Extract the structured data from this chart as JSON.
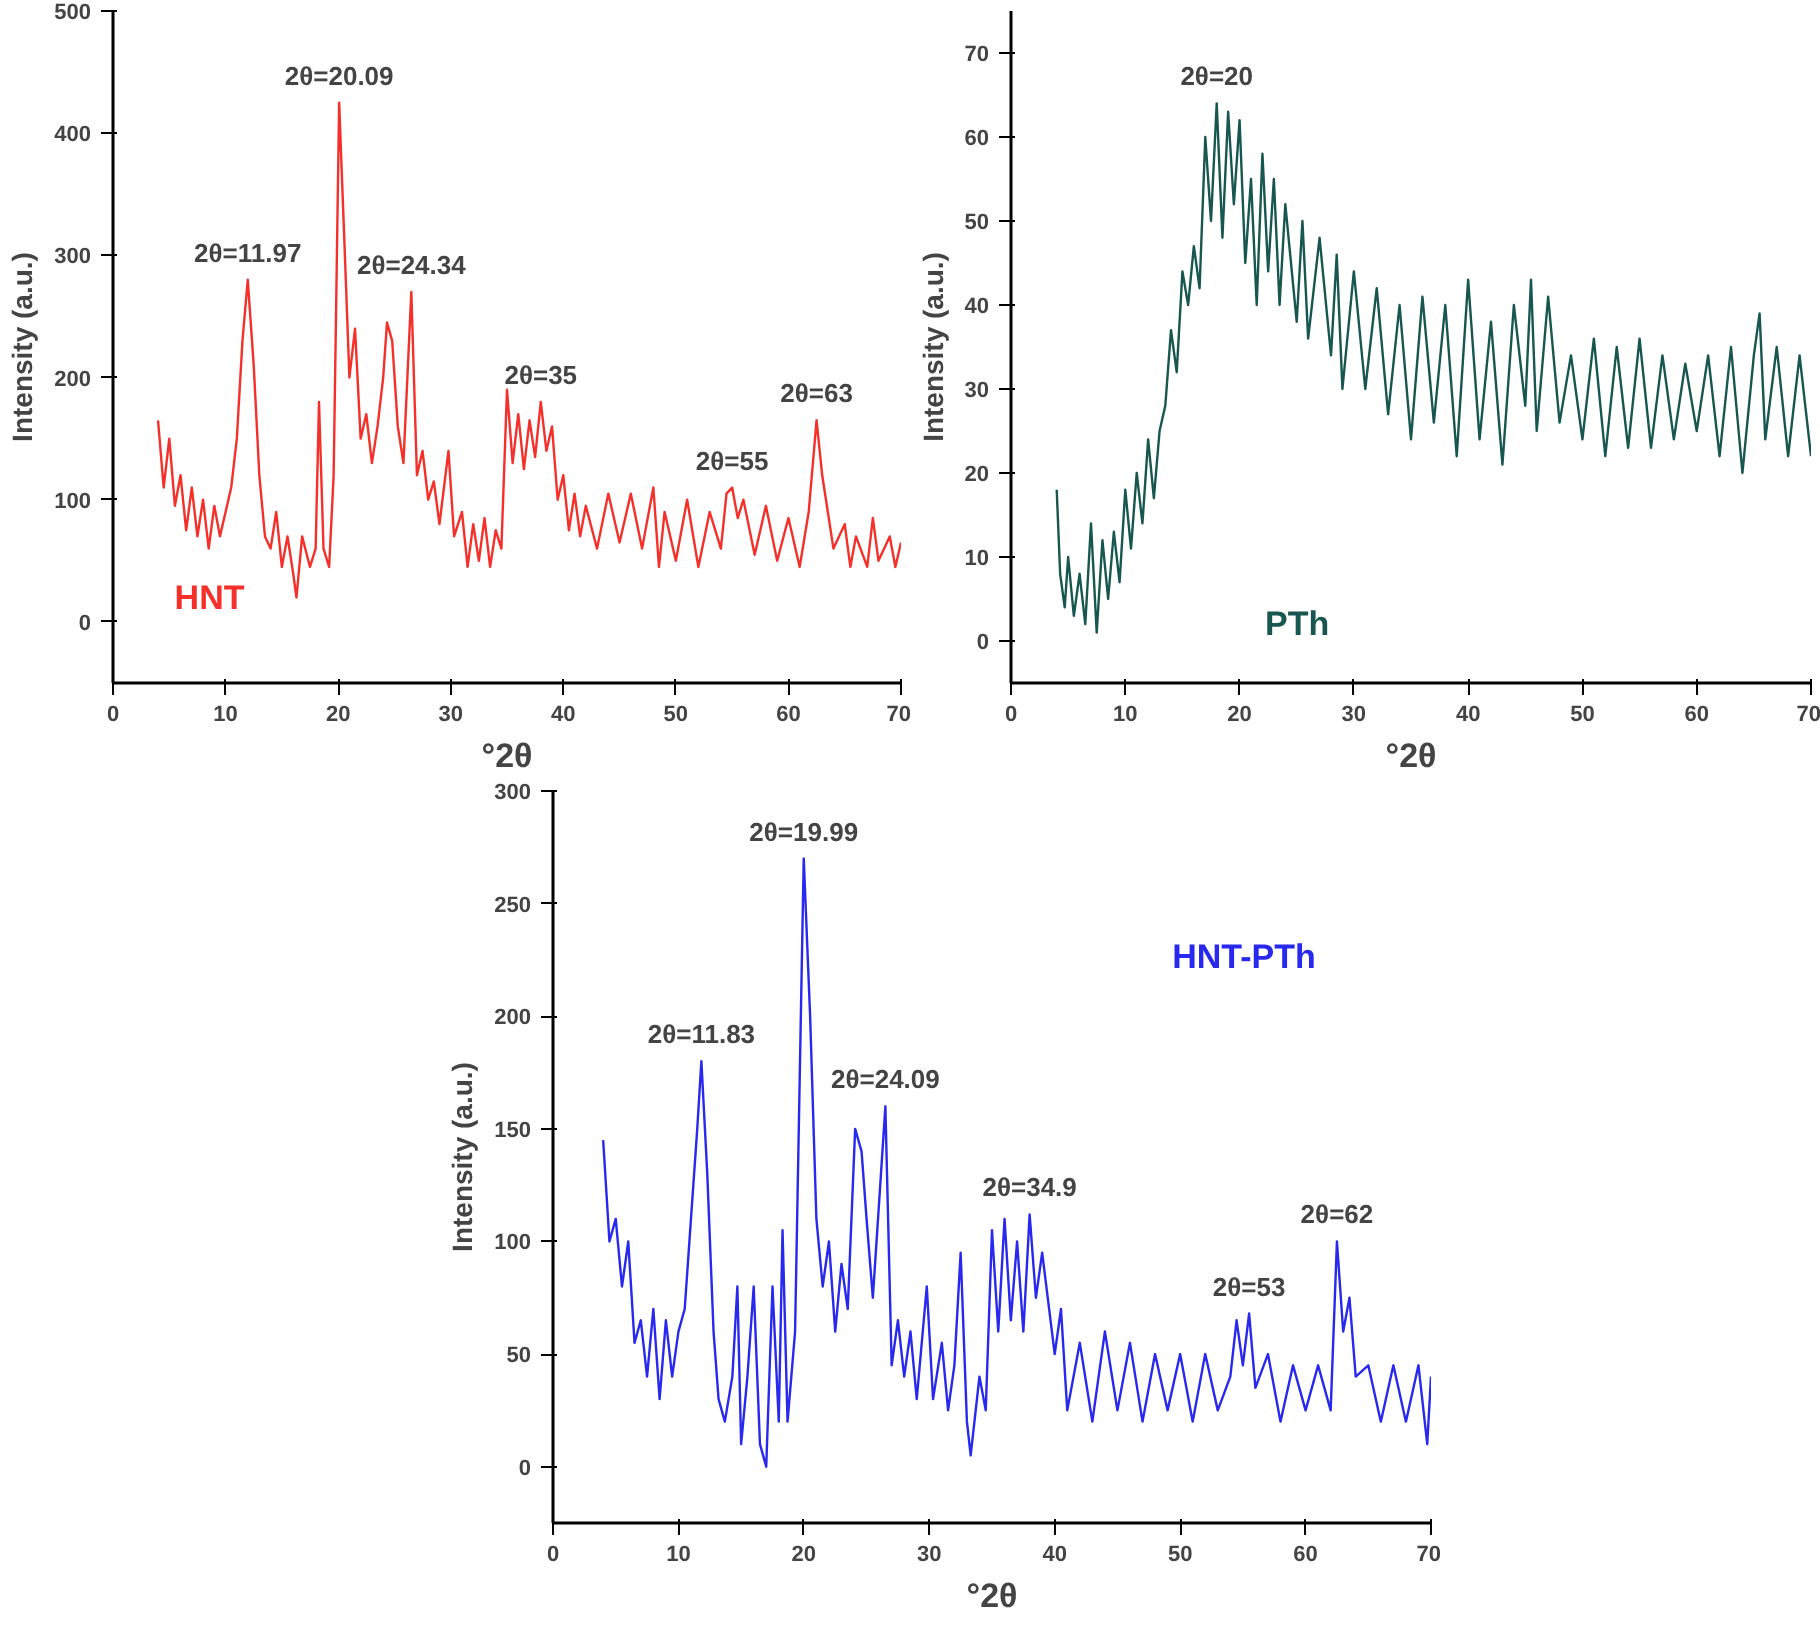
{
  "chart_data": [
    {
      "type": "line",
      "xlabel": "°2θ",
      "ylabel": "Intensity (a.u.)",
      "xlim": [
        0,
        70
      ],
      "xticks": [
        0,
        10,
        20,
        30,
        40,
        50,
        60,
        70
      ],
      "ylim": [
        -50,
        500
      ],
      "yticks": [
        0,
        100,
        200,
        300,
        400,
        500
      ],
      "grid": false,
      "series": [
        {
          "name": "HNT",
          "color": "#f5302a",
          "x": [
            4,
            4.5,
            5,
            5.5,
            6,
            6.5,
            7,
            7.5,
            8,
            8.5,
            9,
            9.5,
            10,
            10.5,
            11,
            11.5,
            11.97,
            12.5,
            13,
            13.5,
            14,
            14.5,
            15,
            15.5,
            16,
            16.3,
            16.8,
            17.5,
            18,
            18.3,
            18.7,
            19.2,
            19.6,
            20.09,
            20.6,
            21,
            21.5,
            22,
            22.5,
            23,
            23.5,
            24,
            24.34,
            24.8,
            25.3,
            25.8,
            26.5,
            27,
            27.5,
            28,
            28.5,
            29,
            29.8,
            30.3,
            31,
            31.5,
            32,
            32.5,
            33,
            33.5,
            34,
            34.5,
            35,
            35.5,
            36,
            36.5,
            37,
            37.5,
            38,
            38.5,
            39,
            39.5,
            40,
            40.5,
            41,
            41.5,
            42,
            43,
            44,
            45,
            46,
            47,
            48,
            48.5,
            49,
            50,
            51,
            52,
            53,
            54,
            54.5,
            55,
            55.5,
            56,
            57,
            58,
            59,
            60,
            61,
            61.8,
            62.5,
            63,
            63.5,
            64,
            65,
            65.5,
            66,
            67,
            67.5,
            68,
            69,
            69.5,
            70
          ],
          "values": [
            165,
            110,
            150,
            95,
            120,
            75,
            110,
            70,
            100,
            60,
            95,
            70,
            90,
            110,
            150,
            230,
            280,
            210,
            120,
            70,
            60,
            90,
            45,
            70,
            40,
            20,
            70,
            45,
            60,
            180,
            60,
            45,
            120,
            425,
            300,
            200,
            240,
            150,
            170,
            130,
            160,
            200,
            245,
            230,
            160,
            130,
            270,
            120,
            140,
            100,
            115,
            80,
            140,
            70,
            90,
            45,
            80,
            50,
            85,
            45,
            75,
            60,
            190,
            130,
            170,
            125,
            165,
            135,
            180,
            140,
            160,
            100,
            120,
            75,
            105,
            70,
            95,
            60,
            105,
            65,
            105,
            60,
            110,
            45,
            90,
            50,
            100,
            45,
            90,
            60,
            105,
            110,
            85,
            100,
            55,
            95,
            50,
            85,
            45,
            90,
            165,
            120,
            90,
            60,
            80,
            45,
            70,
            45,
            85,
            50,
            70,
            45,
            65
          ]
        }
      ],
      "annotations": [
        {
          "text": "2θ=11.97",
          "x": 11.97,
          "y": 280
        },
        {
          "text": "2θ=20.09",
          "x": 20.09,
          "y": 425
        },
        {
          "text": "2θ=24.34",
          "x": 26.5,
          "y": 270
        },
        {
          "text": "2θ=35",
          "x": 38,
          "y": 180
        },
        {
          "text": "2θ=55",
          "x": 55,
          "y": 110
        },
        {
          "text": "2θ=63",
          "x": 62.5,
          "y": 165
        }
      ]
    },
    {
      "type": "line",
      "xlabel": "°2θ",
      "ylabel": "Intensity (a.u.)",
      "xlim": [
        0,
        70
      ],
      "xticks": [
        0,
        10,
        20,
        30,
        40,
        50,
        60,
        70
      ],
      "ylim": [
        -5,
        75
      ],
      "yticks": [
        0,
        10,
        20,
        30,
        40,
        50,
        60,
        70
      ],
      "grid": false,
      "series": [
        {
          "name": "PTh",
          "color": "#17574f",
          "x": [
            4,
            4.3,
            4.7,
            5,
            5.5,
            6,
            6.5,
            7,
            7.5,
            8,
            8.5,
            9,
            9.5,
            10,
            10.5,
            11,
            11.5,
            12,
            12.5,
            13,
            13.5,
            14,
            14.5,
            15,
            15.5,
            16,
            16.5,
            17,
            17.5,
            18,
            18.5,
            19,
            19.5,
            20,
            20.5,
            21,
            21.5,
            22,
            22.5,
            23,
            23.5,
            24,
            25,
            25.5,
            26,
            27,
            28,
            28.5,
            29,
            30,
            31,
            32,
            33,
            34,
            35,
            36,
            37,
            38,
            39,
            40,
            41,
            42,
            43,
            44,
            45,
            45.5,
            46,
            47,
            48,
            49,
            50,
            51,
            52,
            53,
            54,
            55,
            56,
            57,
            58,
            59,
            60,
            61,
            62,
            63,
            64,
            65,
            65.5,
            66,
            67,
            68,
            69,
            69.5,
            70
          ],
          "values": [
            18,
            8,
            4,
            10,
            3,
            8,
            2,
            14,
            1,
            12,
            5,
            13,
            7,
            18,
            11,
            20,
            14,
            24,
            17,
            25,
            28,
            37,
            32,
            44,
            40,
            47,
            42,
            60,
            50,
            64,
            48,
            63,
            52,
            62,
            45,
            55,
            40,
            58,
            44,
            55,
            40,
            52,
            38,
            50,
            36,
            48,
            34,
            46,
            30,
            44,
            30,
            42,
            27,
            40,
            24,
            41,
            26,
            40,
            22,
            43,
            24,
            38,
            21,
            40,
            28,
            43,
            25,
            41,
            26,
            34,
            24,
            36,
            22,
            35,
            23,
            36,
            23,
            34,
            24,
            33,
            25,
            34,
            22,
            35,
            20,
            34,
            39,
            24,
            35,
            22,
            34,
            28,
            22
          ]
        }
      ],
      "annotations": [
        {
          "text": "2θ=20",
          "x": 18,
          "y": 64
        }
      ]
    },
    {
      "type": "line",
      "xlabel": "°2θ",
      "ylabel": "Intensity (a.u.)",
      "xlim": [
        0,
        70
      ],
      "xticks": [
        0,
        10,
        20,
        30,
        40,
        50,
        60,
        70
      ],
      "ylim": [
        -25,
        300
      ],
      "yticks": [
        0,
        50,
        100,
        150,
        200,
        250,
        300
      ],
      "grid": false,
      "series": [
        {
          "name": "HNT-PTh",
          "color": "#2828ee",
          "x": [
            4,
            4.5,
            5,
            5.5,
            6,
            6.5,
            7,
            7.5,
            8,
            8.5,
            9,
            9.5,
            10,
            10.5,
            11,
            11.5,
            11.83,
            12.3,
            12.8,
            13.2,
            13.7,
            14.3,
            14.7,
            15,
            15.5,
            16,
            16.5,
            17,
            17.5,
            18,
            18.3,
            18.7,
            19.3,
            19.99,
            20.5,
            21,
            21.5,
            22,
            22.5,
            23,
            23.5,
            24.09,
            24.6,
            25,
            25.5,
            26.5,
            27,
            27.5,
            28,
            28.5,
            29,
            29.8,
            30.3,
            31,
            31.5,
            32,
            32.5,
            33,
            33.3,
            34,
            34.5,
            35,
            35.5,
            36,
            36.5,
            37,
            37.5,
            38,
            38.5,
            39,
            40,
            40.5,
            41,
            42,
            43,
            44,
            45,
            46,
            47,
            48,
            49,
            50,
            51,
            52,
            53,
            54,
            54.5,
            55,
            55.5,
            56,
            57,
            58,
            59,
            60,
            61,
            62,
            62.5,
            63,
            63.5,
            64,
            65,
            66,
            67,
            68,
            69,
            69.7,
            70
          ],
          "values": [
            145,
            100,
            110,
            80,
            100,
            55,
            65,
            40,
            70,
            30,
            65,
            40,
            60,
            70,
            110,
            150,
            180,
            130,
            60,
            30,
            20,
            40,
            80,
            10,
            40,
            80,
            10,
            0,
            80,
            20,
            105,
            20,
            60,
            270,
            200,
            110,
            80,
            100,
            60,
            90,
            70,
            150,
            140,
            110,
            75,
            160,
            45,
            65,
            40,
            60,
            30,
            80,
            30,
            55,
            25,
            45,
            95,
            20,
            5,
            40,
            25,
            105,
            60,
            110,
            65,
            100,
            60,
            112,
            75,
            95,
            50,
            70,
            25,
            55,
            20,
            60,
            25,
            55,
            20,
            50,
            25,
            50,
            20,
            50,
            25,
            40,
            65,
            45,
            68,
            35,
            50,
            20,
            45,
            25,
            45,
            25,
            100,
            60,
            75,
            40,
            45,
            20,
            45,
            20,
            45,
            10,
            40
          ]
        }
      ],
      "annotations": [
        {
          "text": "2θ=11.83",
          "x": 11.83,
          "y": 180
        },
        {
          "text": "2θ=19.99",
          "x": 19.99,
          "y": 270
        },
        {
          "text": "2θ=24.09",
          "x": 26.5,
          "y": 160
        },
        {
          "text": "2θ=34.9",
          "x": 38,
          "y": 112
        },
        {
          "text": "2θ=53",
          "x": 55.5,
          "y": 68
        },
        {
          "text": "2θ=62",
          "x": 62.5,
          "y": 100
        }
      ]
    }
  ]
}
